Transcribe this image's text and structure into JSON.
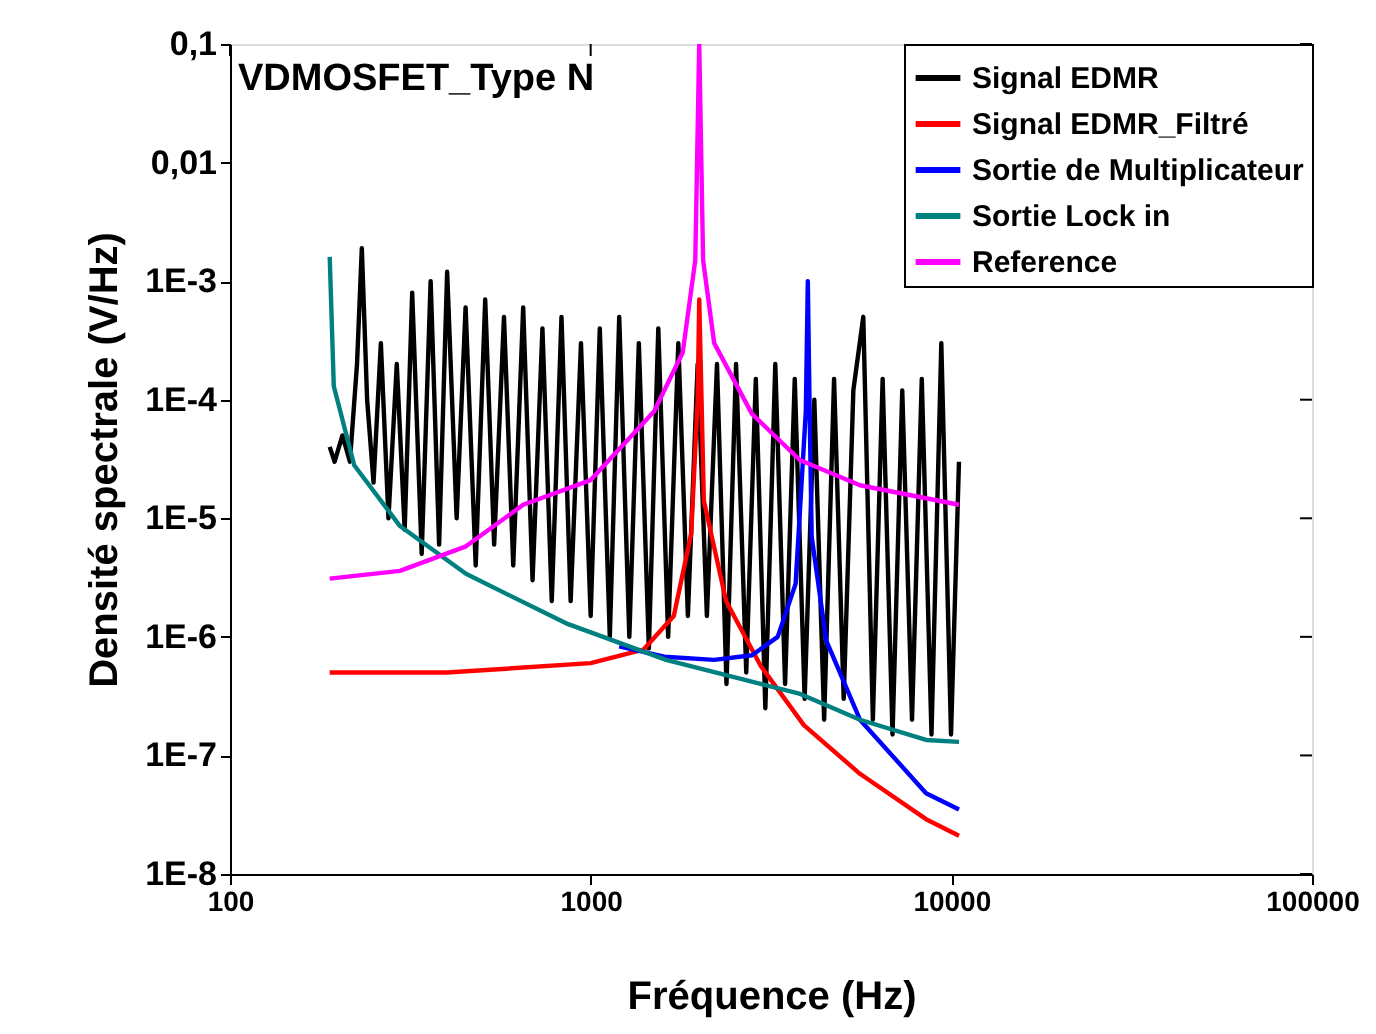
{
  "chart_data": {
    "type": "line",
    "xlabel": "Fréquence (Hz)",
    "ylabel": "Densité spectrale (V/Hz)",
    "annotations": [
      "VDMOSFET_Type N"
    ],
    "log": "xy",
    "grid": false,
    "legend": "top right",
    "marker": "none",
    "line_style": "solid",
    "xlim": [
      100,
      100000
    ],
    "xticks": [
      100,
      1000,
      10000,
      100000
    ],
    "ylim": [
      1e-08,
      0.1
    ],
    "yticks": [
      {
        "value": 0.1,
        "label": "0,1"
      },
      {
        "value": 0.01,
        "label": "0,01"
      },
      {
        "value": 0.001,
        "label": "1E-3"
      },
      {
        "value": 0.0001,
        "label": "1E-4"
      },
      {
        "value": 1e-05,
        "label": "1E-5"
      },
      {
        "value": 1e-06,
        "label": "1E-6"
      },
      {
        "value": 1e-07,
        "label": "1E-7"
      },
      {
        "value": 1e-08,
        "label": "1E-8"
      }
    ],
    "series": [
      {
        "name": "Signal EDMR",
        "color": "#000000",
        "x": [
          189,
          195,
          205,
          215,
          225,
          232,
          240,
          250,
          262,
          275,
          290,
          305,
          320,
          340,
          360,
          380,
          400,
          425,
          450,
          480,
          510,
          540,
          575,
          610,
          650,
          690,
          735,
          780,
          830,
          880,
          940,
          1000,
          1060,
          1130,
          1200,
          1280,
          1360,
          1450,
          1540,
          1640,
          1750,
          1860,
          1980,
          2100,
          2240,
          2380,
          2530,
          2700,
          2870,
          3050,
          3250,
          3460,
          3680,
          3920,
          4170,
          4440,
          4730,
          5030,
          5350,
          5700,
          6060,
          6450,
          6870,
          7310,
          7780,
          8280,
          8810,
          9380,
          9980,
          10500
        ],
        "values": [
          4e-05,
          3e-05,
          5e-05,
          3e-05,
          0.0002,
          0.0019,
          0.0001,
          2e-05,
          0.0003,
          1e-05,
          0.0002,
          8e-06,
          0.0008,
          5e-06,
          0.001,
          6e-06,
          0.0012,
          1e-05,
          0.0006,
          4e-06,
          0.0007,
          6e-06,
          0.0005,
          4e-06,
          0.0006,
          3e-06,
          0.0004,
          2e-06,
          0.0005,
          2e-06,
          0.0003,
          1.5e-06,
          0.0004,
          1e-06,
          0.0005,
          1e-06,
          0.0003,
          8e-07,
          0.0004,
          1e-06,
          0.0003,
          1.5e-06,
          0.0002,
          1.5e-06,
          0.0002,
          4e-07,
          0.0002,
          5e-07,
          0.00015,
          2.5e-07,
          0.0002,
          4e-07,
          0.00015,
          3e-07,
          0.0001,
          2e-07,
          0.00015,
          3e-07,
          0.00012,
          0.0005,
          2e-07,
          0.00015,
          1.5e-07,
          0.00012,
          2e-07,
          0.00015,
          1.5e-07,
          0.0003,
          1.5e-07,
          3e-05
        ]
      },
      {
        "name": "Signal EDMR_Filtré",
        "color": "#ff0000",
        "x": [
          189,
          400,
          1000,
          1400,
          1700,
          1900,
          1980,
          2000,
          2060,
          2375,
          2960,
          3900,
          5580,
          8510,
          10500
        ],
        "values": [
          5e-07,
          5e-07,
          6e-07,
          7.8e-07,
          1.5e-06,
          7.4e-06,
          0.0001,
          0.0007,
          1.4e-05,
          2e-06,
          5.7e-07,
          1.8e-07,
          7e-08,
          2.9e-08,
          2.1e-08
        ]
      },
      {
        "name": "Sortie de Multiplicateur",
        "color": "#0000ff",
        "x": [
          1200,
          1600,
          2200,
          2800,
          3300,
          3700,
          3950,
          4000,
          4050,
          4100,
          4500,
          5580,
          8510,
          10500
        ],
        "values": [
          8.3e-07,
          6.8e-07,
          6.4e-07,
          7e-07,
          1e-06,
          2.8e-06,
          8e-05,
          0.001,
          7e-05,
          7e-06,
          9.3e-07,
          2e-07,
          4.8e-08,
          3.5e-08
        ]
      },
      {
        "name": "Sortie Lock in",
        "color": "#008080",
        "x": [
          189,
          194,
          221,
          296,
          451,
          855,
          1618,
          3811,
          5580,
          8510,
          10500
        ],
        "values": [
          0.0016,
          0.00013,
          2.8e-05,
          8.6e-06,
          3.4e-06,
          1.3e-06,
          6.4e-07,
          3.3e-07,
          2e-07,
          1.35e-07,
          1.3e-07
        ]
      },
      {
        "name": "Reference",
        "color": "#ff00ff",
        "x": [
          189,
          296,
          451,
          650,
          1000,
          1500,
          1800,
          1950,
          2000,
          2050,
          2200,
          2800,
          3800,
          5580,
          10500
        ],
        "values": [
          3.1e-06,
          3.6e-06,
          5.8e-06,
          1.3e-05,
          2.1e-05,
          8e-05,
          0.00025,
          0.0015,
          0.1,
          0.0015,
          0.0003,
          7.6e-05,
          3.1e-05,
          1.9e-05,
          1.3e-05
        ]
      }
    ]
  }
}
